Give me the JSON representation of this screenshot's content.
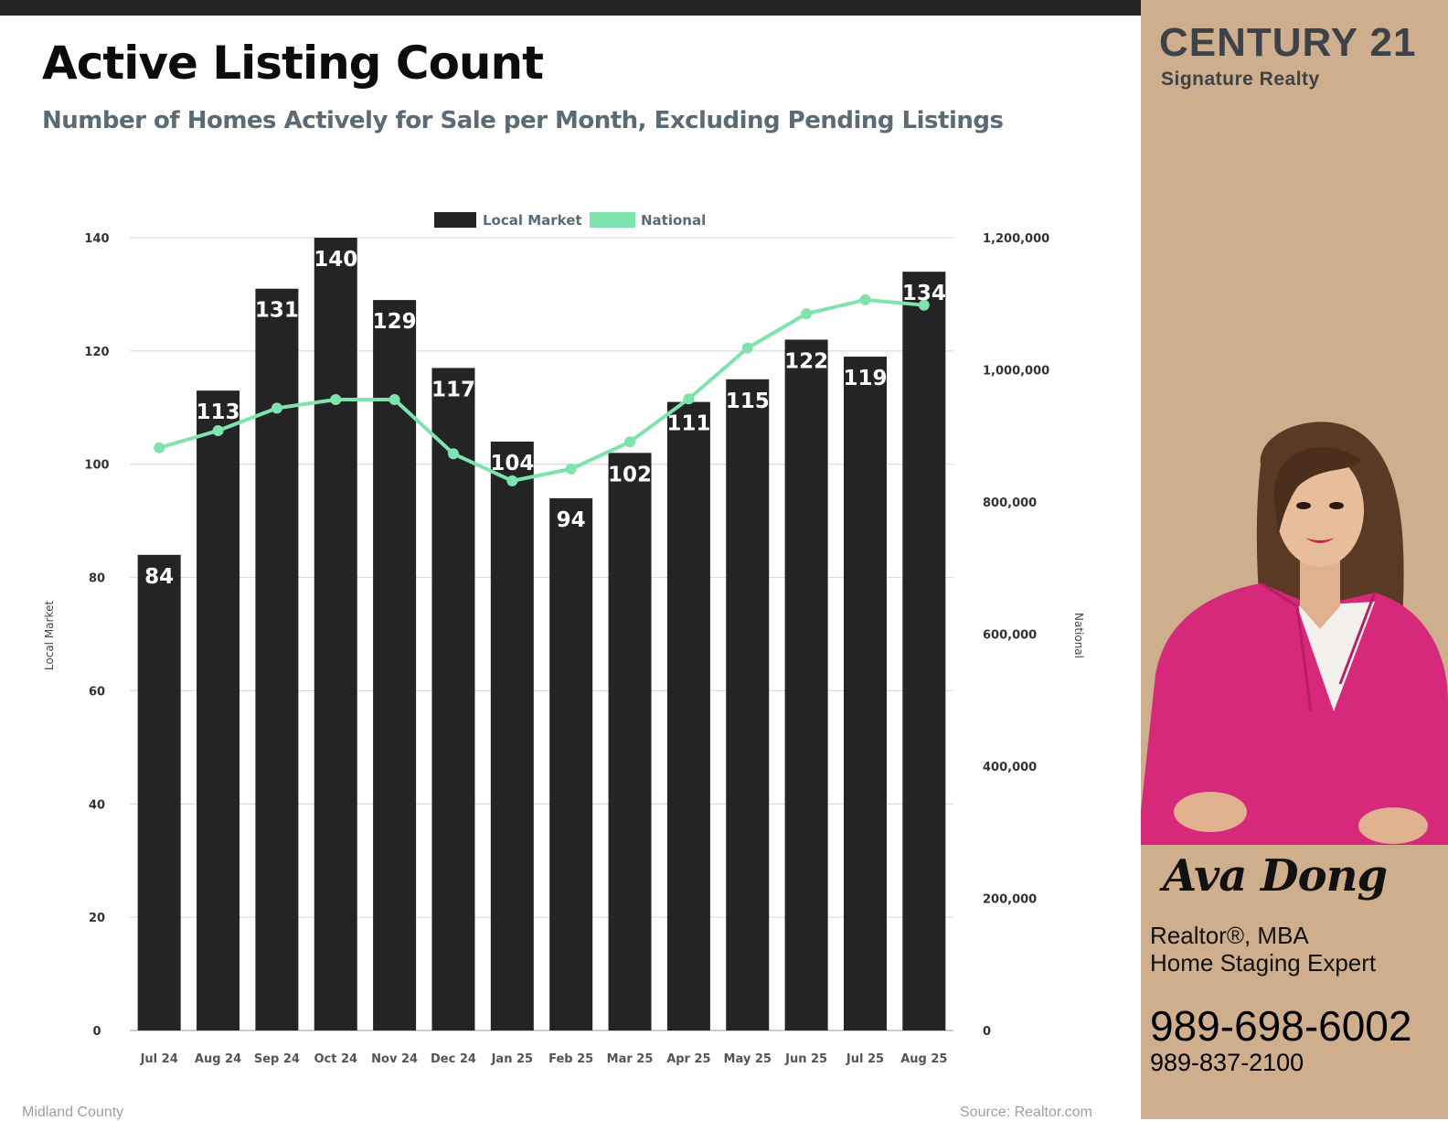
{
  "header": {
    "title": "Active Listing Count",
    "subtitle": "Number of Homes Actively for Sale per Month, Excluding Pending Listings"
  },
  "footer": {
    "left": "Midland County",
    "right": "Source: Realtor.com"
  },
  "brand": {
    "name": "CENTURY 21",
    "sub": "Signature Realty"
  },
  "agent": {
    "name": "Ava Dong",
    "title1": "Realtor®, MBA",
    "title2": "Home Staging Expert",
    "phone1": "989-698-6002",
    "phone2": "989-837-2100",
    "photo_icon": "agent-portrait"
  },
  "colors": {
    "bar": "#242424",
    "line": "#7ee3ad",
    "grid": "#d4d4d4",
    "sidebar": "#cfae8e",
    "blazer": "#d6297a"
  },
  "chart_data": {
    "type": "bar",
    "categories": [
      "Jul 24",
      "Aug 24",
      "Sep 24",
      "Oct 24",
      "Nov 24",
      "Dec 24",
      "Jan 25",
      "Feb 25",
      "Mar 25",
      "Apr 25",
      "May 25",
      "Jun 25",
      "Jul 25",
      "Aug 25"
    ],
    "series": [
      {
        "name": "Local Market",
        "type": "bar",
        "axis": "left",
        "values": [
          84,
          113,
          131,
          140,
          129,
          117,
          104,
          94,
          102,
          111,
          115,
          122,
          119,
          134
        ]
      },
      {
        "name": "National",
        "type": "line",
        "axis": "right",
        "values": [
          882000,
          908000,
          942000,
          955000,
          955000,
          873000,
          832000,
          850000,
          891000,
          956000,
          1033000,
          1085000,
          1106000,
          1098000
        ]
      }
    ],
    "ylabel": "Local Market",
    "y2label": "National",
    "ylim": [
      0,
      140
    ],
    "y2lim": [
      0,
      1200000
    ],
    "yticks": [
      0,
      20,
      40,
      60,
      80,
      100,
      120,
      140
    ],
    "y2ticks": [
      "0",
      "200,000",
      "400,000",
      "600,000",
      "800,000",
      "1,000,000",
      "1,200,000"
    ],
    "grid": true,
    "legend": "top-center",
    "data_labels": true
  }
}
